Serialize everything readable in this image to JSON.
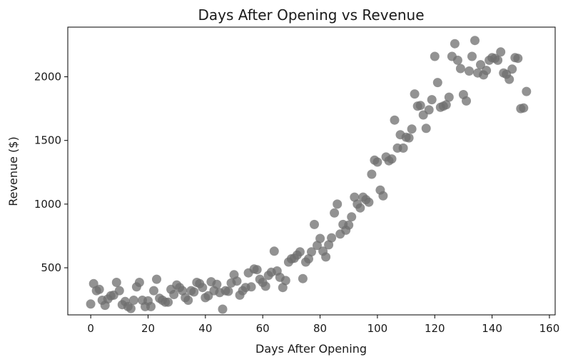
{
  "chart_data": {
    "type": "scatter",
    "title": "Days After Opening vs Revenue",
    "xlabel": "Days After Opening",
    "ylabel": "Revenue ($)",
    "xlim": [
      -8,
      162
    ],
    "ylim": [
      130,
      2390
    ],
    "xticks": [
      0,
      20,
      40,
      60,
      80,
      100,
      120,
      140,
      160
    ],
    "yticks": [
      500,
      1000,
      1500,
      2000
    ],
    "grid": false,
    "series": [
      {
        "color": "#6e6e6e",
        "points": [
          [
            0,
            215
          ],
          [
            1,
            375
          ],
          [
            2,
            320
          ],
          [
            3,
            330
          ],
          [
            4,
            245
          ],
          [
            5,
            205
          ],
          [
            6,
            255
          ],
          [
            7,
            280
          ],
          [
            8,
            285
          ],
          [
            9,
            385
          ],
          [
            10,
            320
          ],
          [
            11,
            210
          ],
          [
            12,
            235
          ],
          [
            13,
            195
          ],
          [
            14,
            180
          ],
          [
            15,
            245
          ],
          [
            16,
            350
          ],
          [
            17,
            385
          ],
          [
            18,
            245
          ],
          [
            19,
            195
          ],
          [
            20,
            240
          ],
          [
            21,
            195
          ],
          [
            22,
            320
          ],
          [
            23,
            410
          ],
          [
            24,
            260
          ],
          [
            25,
            245
          ],
          [
            26,
            230
          ],
          [
            27,
            230
          ],
          [
            28,
            330
          ],
          [
            29,
            290
          ],
          [
            30,
            365
          ],
          [
            31,
            345
          ],
          [
            32,
            320
          ],
          [
            33,
            265
          ],
          [
            34,
            245
          ],
          [
            35,
            320
          ],
          [
            36,
            310
          ],
          [
            37,
            385
          ],
          [
            38,
            375
          ],
          [
            39,
            345
          ],
          [
            40,
            265
          ],
          [
            41,
            280
          ],
          [
            42,
            390
          ],
          [
            43,
            320
          ],
          [
            44,
            370
          ],
          [
            45,
            305
          ],
          [
            46,
            175
          ],
          [
            47,
            320
          ],
          [
            48,
            315
          ],
          [
            49,
            380
          ],
          [
            50,
            445
          ],
          [
            51,
            395
          ],
          [
            52,
            285
          ],
          [
            53,
            320
          ],
          [
            54,
            345
          ],
          [
            55,
            460
          ],
          [
            56,
            350
          ],
          [
            57,
            490
          ],
          [
            58,
            485
          ],
          [
            59,
            410
          ],
          [
            60,
            385
          ],
          [
            61,
            355
          ],
          [
            62,
            440
          ],
          [
            63,
            465
          ],
          [
            64,
            630
          ],
          [
            65,
            475
          ],
          [
            66,
            425
          ],
          [
            67,
            345
          ],
          [
            68,
            400
          ],
          [
            69,
            545
          ],
          [
            70,
            570
          ],
          [
            71,
            575
          ],
          [
            72,
            600
          ],
          [
            73,
            625
          ],
          [
            74,
            415
          ],
          [
            75,
            545
          ],
          [
            76,
            570
          ],
          [
            77,
            625
          ],
          [
            78,
            840
          ],
          [
            79,
            675
          ],
          [
            80,
            730
          ],
          [
            81,
            630
          ],
          [
            82,
            585
          ],
          [
            83,
            680
          ],
          [
            84,
            735
          ],
          [
            85,
            930
          ],
          [
            86,
            1000
          ],
          [
            87,
            765
          ],
          [
            88,
            840
          ],
          [
            89,
            795
          ],
          [
            90,
            835
          ],
          [
            91,
            900
          ],
          [
            92,
            1055
          ],
          [
            93,
            1000
          ],
          [
            94,
            970
          ],
          [
            95,
            1055
          ],
          [
            96,
            1035
          ],
          [
            97,
            1015
          ],
          [
            98,
            1235
          ],
          [
            99,
            1345
          ],
          [
            100,
            1330
          ],
          [
            101,
            1110
          ],
          [
            102,
            1065
          ],
          [
            103,
            1370
          ],
          [
            104,
            1340
          ],
          [
            105,
            1355
          ],
          [
            106,
            1660
          ],
          [
            107,
            1440
          ],
          [
            108,
            1545
          ],
          [
            109,
            1440
          ],
          [
            110,
            1525
          ],
          [
            111,
            1520
          ],
          [
            112,
            1590
          ],
          [
            113,
            1865
          ],
          [
            114,
            1770
          ],
          [
            115,
            1775
          ],
          [
            116,
            1700
          ],
          [
            117,
            1595
          ],
          [
            118,
            1740
          ],
          [
            119,
            1820
          ],
          [
            120,
            2160
          ],
          [
            121,
            1955
          ],
          [
            122,
            1760
          ],
          [
            123,
            1770
          ],
          [
            124,
            1780
          ],
          [
            125,
            1840
          ],
          [
            126,
            2160
          ],
          [
            127,
            2260
          ],
          [
            128,
            2130
          ],
          [
            129,
            2065
          ],
          [
            130,
            1860
          ],
          [
            131,
            1810
          ],
          [
            132,
            2045
          ],
          [
            133,
            2160
          ],
          [
            134,
            2285
          ],
          [
            135,
            2030
          ],
          [
            136,
            2095
          ],
          [
            137,
            2015
          ],
          [
            138,
            2050
          ],
          [
            139,
            2130
          ],
          [
            140,
            2150
          ],
          [
            141,
            2145
          ],
          [
            142,
            2130
          ],
          [
            143,
            2195
          ],
          [
            144,
            2030
          ],
          [
            145,
            2020
          ],
          [
            146,
            1980
          ],
          [
            147,
            2060
          ],
          [
            148,
            2150
          ],
          [
            149,
            2145
          ],
          [
            150,
            1750
          ],
          [
            151,
            1755
          ],
          [
            152,
            1885
          ]
        ]
      }
    ]
  }
}
